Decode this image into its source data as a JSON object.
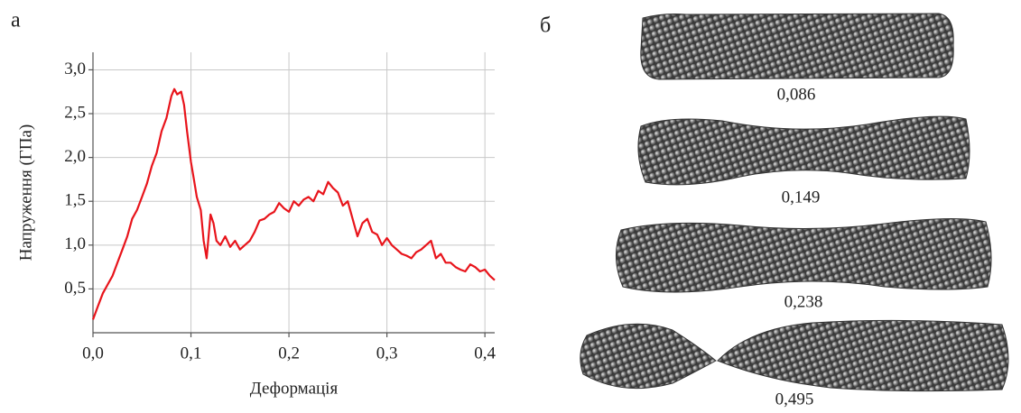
{
  "panel_labels": [
    "а",
    "б"
  ],
  "chart_data": {
    "type": "line",
    "x_label": "Деформація",
    "y_label": "Напруження (ГПа)",
    "xlim": [
      0,
      0.41
    ],
    "ylim": [
      0,
      3.2
    ],
    "xticks": [
      {
        "value": 0,
        "label": "0,0"
      },
      {
        "value": 0.1,
        "label": "0,1"
      },
      {
        "value": 0.2,
        "label": "0,2"
      },
      {
        "value": 0.3,
        "label": "0,3"
      },
      {
        "value": 0.4,
        "label": "0,4"
      }
    ],
    "yticks": [
      {
        "value": 0.5,
        "label": "0,5"
      },
      {
        "value": 1.0,
        "label": "1,0"
      },
      {
        "value": 1.5,
        "label": "1,5"
      },
      {
        "value": 2.0,
        "label": "2,0"
      },
      {
        "value": 2.5,
        "label": "2,5"
      },
      {
        "value": 3.0,
        "label": "3,0"
      }
    ],
    "grid": true,
    "series": [
      {
        "color": "#e8141b",
        "x": [
          0,
          0.005,
          0.01,
          0.015,
          0.02,
          0.025,
          0.03,
          0.035,
          0.04,
          0.045,
          0.05,
          0.055,
          0.06,
          0.065,
          0.07,
          0.075,
          0.08,
          0.083,
          0.086,
          0.09,
          0.093,
          0.096,
          0.1,
          0.103,
          0.106,
          0.11,
          0.113,
          0.116,
          0.12,
          0.123,
          0.126,
          0.13,
          0.135,
          0.14,
          0.145,
          0.15,
          0.155,
          0.16,
          0.165,
          0.17,
          0.175,
          0.18,
          0.185,
          0.19,
          0.195,
          0.2,
          0.205,
          0.21,
          0.215,
          0.22,
          0.225,
          0.23,
          0.235,
          0.24,
          0.245,
          0.25,
          0.255,
          0.26,
          0.265,
          0.27,
          0.275,
          0.28,
          0.285,
          0.29,
          0.295,
          0.3,
          0.305,
          0.31,
          0.315,
          0.32,
          0.325,
          0.33,
          0.335,
          0.34,
          0.345,
          0.35,
          0.355,
          0.36,
          0.365,
          0.37,
          0.375,
          0.38,
          0.385,
          0.39,
          0.395,
          0.4,
          0.405,
          0.41
        ],
        "values": [
          0.15,
          0.3,
          0.45,
          0.55,
          0.65,
          0.8,
          0.95,
          1.1,
          1.3,
          1.4,
          1.55,
          1.7,
          1.9,
          2.05,
          2.3,
          2.45,
          2.7,
          2.78,
          2.72,
          2.75,
          2.6,
          2.3,
          1.95,
          1.75,
          1.55,
          1.4,
          1.05,
          0.85,
          1.35,
          1.25,
          1.05,
          1.0,
          1.1,
          0.98,
          1.05,
          0.95,
          1.0,
          1.05,
          1.15,
          1.28,
          1.3,
          1.35,
          1.38,
          1.48,
          1.42,
          1.38,
          1.5,
          1.45,
          1.52,
          1.55,
          1.5,
          1.62,
          1.58,
          1.72,
          1.65,
          1.6,
          1.45,
          1.5,
          1.3,
          1.1,
          1.25,
          1.3,
          1.15,
          1.12,
          1.0,
          1.08,
          1.0,
          0.95,
          0.9,
          0.88,
          0.85,
          0.92,
          0.95,
          1.0,
          1.05,
          0.85,
          0.9,
          0.8,
          0.8,
          0.75,
          0.72,
          0.7,
          0.78,
          0.75,
          0.7,
          0.72,
          0.65,
          0.6
        ]
      }
    ]
  },
  "snapshots": [
    "0,086",
    "0,149",
    "0,238",
    "0,495"
  ]
}
